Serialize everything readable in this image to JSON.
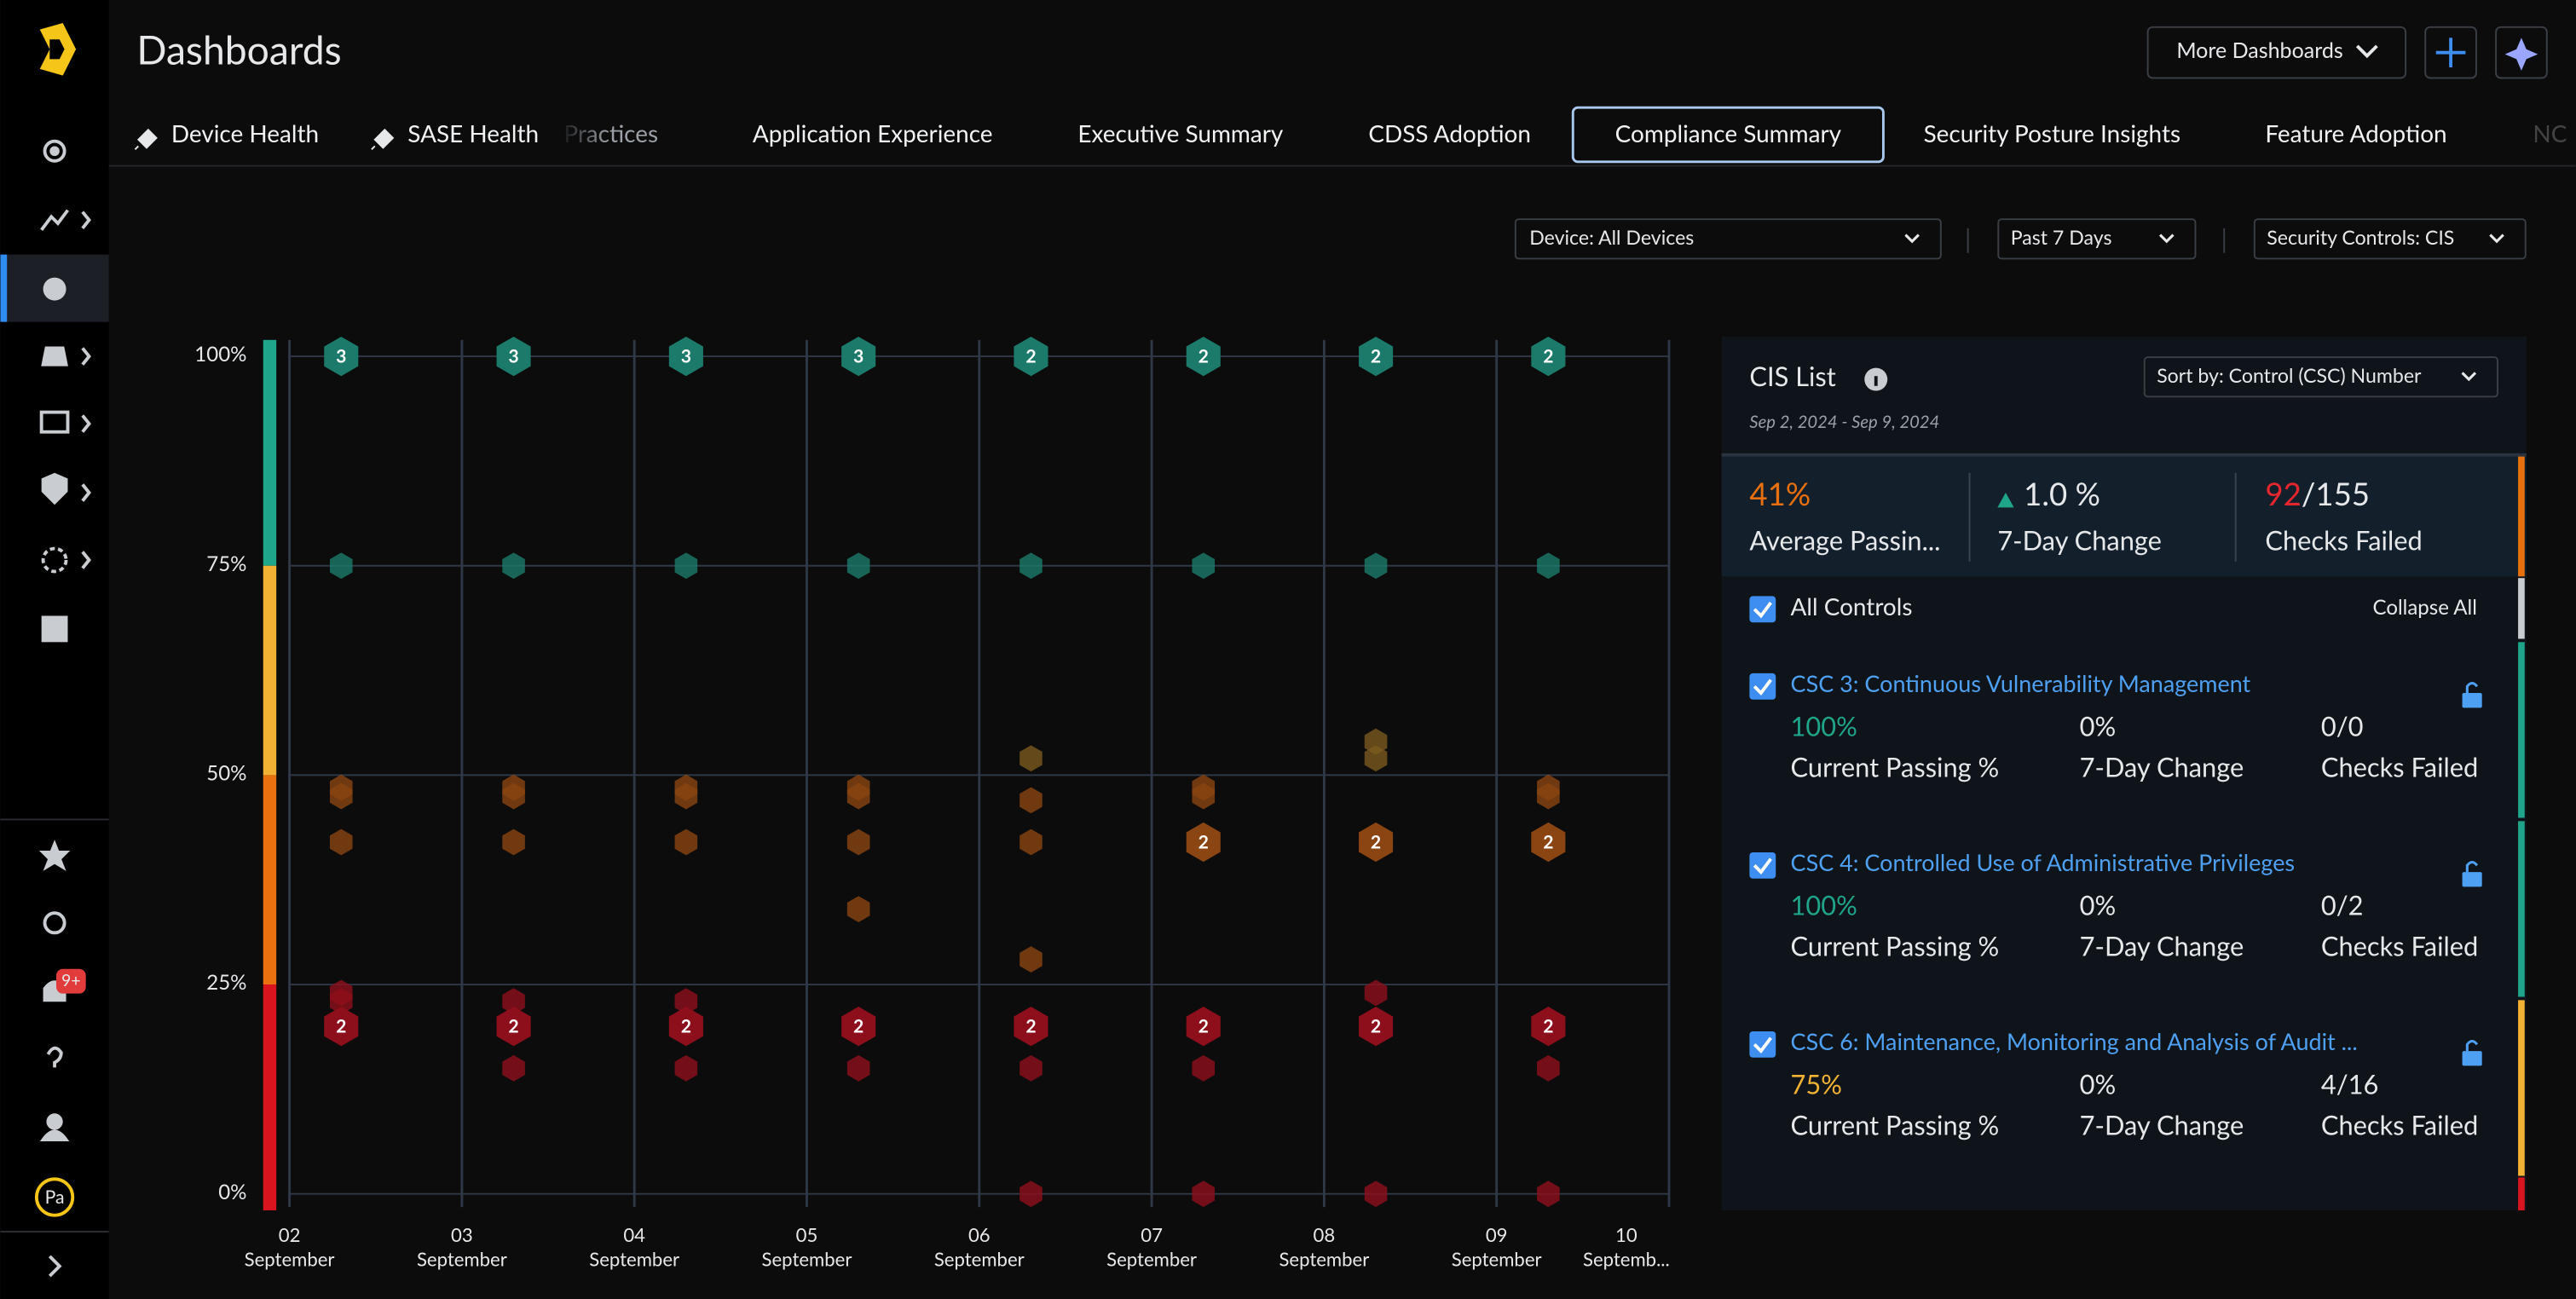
{
  "header": {
    "title": "Dashboards",
    "more_dashboards": "More Dashboards"
  },
  "tabs": [
    "Device Health",
    "SASE Health",
    "Practices",
    "Application Experience",
    "Executive Summary",
    "CDSS Adoption",
    "Compliance Summary",
    "Security Posture Insights",
    "Feature Adoption",
    "NC"
  ],
  "filters": [
    "Device: All Devices",
    "Past 7 Days",
    "Security Controls: CIS"
  ],
  "sidebar": {
    "notification_badge": "9+",
    "avatar": "Pa"
  },
  "chart_data": {
    "type": "scatter",
    "xlim": [
      2,
      10
    ],
    "xticks": [
      {
        "value": 2,
        "label": "02 September"
      },
      {
        "value": 3,
        "label": "03 September"
      },
      {
        "value": 4,
        "label": "04 September"
      },
      {
        "value": 5,
        "label": "05 September"
      },
      {
        "value": 6,
        "label": "06 September"
      },
      {
        "value": 7,
        "label": "07 September"
      },
      {
        "value": 8,
        "label": "08 September"
      },
      {
        "value": 9,
        "label": "09 September"
      },
      {
        "value": 10,
        "label": "10 Septemb..."
      }
    ],
    "ylim": [
      0,
      100
    ],
    "yticks": [
      {
        "value": 0,
        "label": "0%"
      },
      {
        "value": 25,
        "label": "25%"
      },
      {
        "value": 50,
        "label": "50%"
      },
      {
        "value": 75,
        "label": "75%"
      },
      {
        "value": 100,
        "label": "100%"
      }
    ],
    "grid": true,
    "bands": [
      {
        "from": 75,
        "to": 100,
        "color": "#1fa58a"
      },
      {
        "from": 50,
        "to": 75,
        "color": "#f2b233"
      },
      {
        "from": 25,
        "to": 50,
        "color": "#e8700f"
      },
      {
        "from": 0,
        "to": 25,
        "color": "#d8141f"
      }
    ],
    "series": [
      {
        "color": "#1b7a6a",
        "x": [
          2.3,
          3.3,
          4.3,
          5.3,
          6.3,
          7.3,
          8.3,
          9.3,
          2.3,
          3.3,
          4.3,
          5.3,
          6.3,
          7.3,
          8.3,
          9.3
        ],
        "values": [
          100,
          100,
          100,
          100,
          100,
          100,
          100,
          100,
          75,
          75,
          75,
          75,
          75,
          75,
          75,
          75
        ],
        "counts": [
          3,
          3,
          3,
          3,
          2,
          2,
          2,
          2,
          null,
          null,
          null,
          null,
          null,
          null,
          null,
          null
        ]
      },
      {
        "color": "#8a4512",
        "x": [
          2.3,
          2.3,
          2.3,
          3.3,
          3.3,
          3.3,
          4.3,
          4.3,
          4.3,
          5.3,
          5.3,
          5.3,
          5.3,
          6.3,
          6.3,
          6.3,
          7.3,
          7.3,
          7.3,
          8.3,
          9.3,
          9.3,
          9.3
        ],
        "values": [
          48.5,
          47.5,
          42,
          48.5,
          47.5,
          42,
          48.5,
          47.5,
          42,
          48.5,
          47.5,
          42,
          34,
          47,
          42,
          28,
          48.5,
          47.5,
          42,
          42,
          48.5,
          47.5,
          42
        ],
        "counts": [
          null,
          null,
          null,
          null,
          null,
          null,
          null,
          null,
          null,
          null,
          null,
          null,
          null,
          null,
          null,
          null,
          null,
          null,
          2,
          2,
          null,
          null,
          2
        ]
      },
      {
        "color": "#7a5a1e",
        "x": [
          6.3,
          8.3,
          8.3
        ],
        "values": [
          52,
          54,
          52
        ],
        "counts": [
          null,
          null,
          null
        ]
      },
      {
        "color": "#8e0f1c",
        "x": [
          2.3,
          2.3,
          2.3,
          3.3,
          3.3,
          3.3,
          4.3,
          4.3,
          4.3,
          5.3,
          5.3,
          6.3,
          6.3,
          6.3,
          7.3,
          7.3,
          7.3,
          8.3,
          8.3,
          8.3,
          9.3,
          9.3,
          9.3
        ],
        "values": [
          24,
          23,
          20,
          23,
          20,
          15,
          23,
          20,
          15,
          20,
          15,
          20,
          15,
          0,
          20,
          15,
          0,
          24,
          20,
          0,
          20,
          15,
          0
        ],
        "counts": [
          null,
          null,
          2,
          null,
          2,
          null,
          null,
          2,
          null,
          2,
          null,
          2,
          null,
          null,
          2,
          null,
          null,
          null,
          2,
          null,
          2,
          null,
          null
        ]
      }
    ]
  },
  "cis_list": {
    "title": "CIS List",
    "sort": "Sort by: Control (CSC) Number",
    "date_range": "Sep 2, 2024 - Sep 9, 2024",
    "summary": [
      {
        "value": "41%",
        "label": "Average Passin..."
      },
      {
        "value": "1.0 %",
        "label": "7-Day Change"
      },
      {
        "value": "92",
        "total": "/155",
        "label": "Checks Failed"
      }
    ],
    "all_controls": "All Controls",
    "collapse_all": "Collapse All",
    "controls": [
      {
        "title": "CSC 3: Continuous Vulnerability Management",
        "passing": "100%",
        "change": "0%",
        "checks": "0/0",
        "passing_label": "Current Passing %",
        "change_label": "7-Day Change",
        "checks_label": "Checks Failed"
      },
      {
        "title": "CSC 4: Controlled Use of Administrative Privileges",
        "passing": "100%",
        "change": "0%",
        "checks": "0/2",
        "passing_label": "Current Passing %",
        "change_label": "7-Day Change",
        "checks_label": "Checks Failed"
      },
      {
        "title": "CSC 6: Maintenance, Monitoring and Analysis of Audit ...",
        "passing": "75%",
        "change": "0%",
        "checks": "4/16",
        "passing_label": "Current Passing %",
        "change_label": "7-Day Change",
        "checks_label": "Checks Failed"
      }
    ]
  }
}
